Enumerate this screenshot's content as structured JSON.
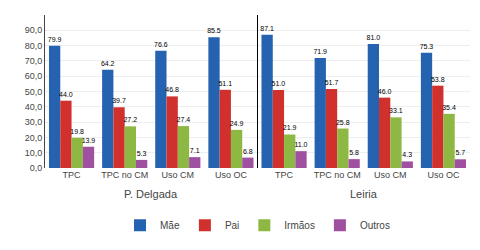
{
  "chart_data": {
    "type": "bar",
    "categories": [
      "TPC",
      "TPC no CM",
      "Uso CM",
      "Uso OC",
      "TPC",
      "TPC no CM",
      "Uso CM",
      "Uso OC"
    ],
    "series": [
      {
        "name": "Mãe",
        "color": "#2563b0",
        "values": [
          79.9,
          64.2,
          76.6,
          85.5,
          87.1,
          71.9,
          81.0,
          75.3
        ],
        "value_labels": [
          "79.9",
          "64.2",
          "76.6",
          "85.5",
          "87.1",
          "71.9",
          "81.0",
          "75.3"
        ]
      },
      {
        "name": "Pai",
        "color": "#d0312d",
        "values": [
          44.0,
          39.7,
          46.8,
          51.1,
          51.0,
          51.7,
          46.0,
          53.8
        ],
        "value_labels": [
          "44.0",
          "39.7",
          "46.8",
          "51.1",
          "51.0",
          "51.7",
          "46.0",
          "53.8"
        ]
      },
      {
        "name": "Irmãos",
        "color": "#8db843",
        "values": [
          19.8,
          27.2,
          27.4,
          24.9,
          21.9,
          25.8,
          33.1,
          35.4
        ],
        "value_labels": [
          "19.8",
          "27.2",
          "27.4",
          "24.9",
          "21.9",
          "25.8",
          "33.1",
          "35.4"
        ]
      },
      {
        "name": "Outros",
        "color": "#a050a0",
        "values": [
          13.9,
          5.3,
          7.1,
          6.8,
          11.0,
          5.8,
          4.3,
          5.7
        ],
        "value_labels": [
          "13.9",
          "5.3",
          "7.1",
          "6.8",
          "11.0",
          "5.8",
          "4.3",
          "5.7"
        ]
      }
    ],
    "annotations": [
      "P. Delgada",
      "Leiria"
    ],
    "ylim": [
      0,
      100
    ],
    "yticks": [
      {
        "value": 0,
        "label": "0,0"
      },
      {
        "value": 10,
        "label": "10,0"
      },
      {
        "value": 20,
        "label": "20,0"
      },
      {
        "value": 30,
        "label": "30,0"
      },
      {
        "value": 40,
        "label": "40,0"
      },
      {
        "value": 50,
        "label": "50,0"
      },
      {
        "value": 60,
        "label": "60,0"
      },
      {
        "value": 70,
        "label": "70,0"
      },
      {
        "value": 80,
        "label": "80,0"
      },
      {
        "value": 90,
        "label": "90,0"
      }
    ],
    "grid": true,
    "legend": "bottom",
    "data_labels": true
  }
}
